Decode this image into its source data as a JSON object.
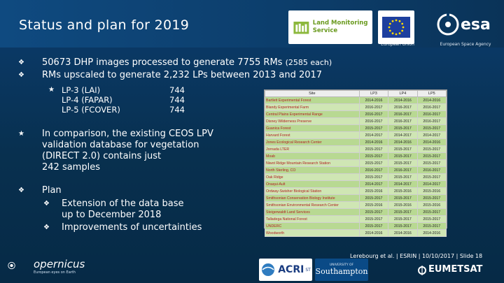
{
  "title": "Status and plan for 2019",
  "logos": {
    "land_monitoring": "Land Monitoring Service",
    "eu_label": "European Union",
    "esa_text": "esa",
    "esa_label": "European Space Agency",
    "copernicus": "opernicus",
    "copernicus_sub": "European eyes on Earth",
    "acri": "ACRI",
    "acri_sub": "ST",
    "southampton_top": "UNIVERSITY OF",
    "southampton": "Southampton",
    "eumetsat": "EUMETSAT"
  },
  "bullets": {
    "b1": "50673 DHP images processed to generate 7755 RMs",
    "b1_small": "(2585 each)",
    "b2": "RMs upscaled to generate 2,232 LPs between 2013 and 2017",
    "lp": [
      {
        "label": "LP-3 (LAI)",
        "value": "744"
      },
      {
        "label": "LP-4 (FAPAR)",
        "value": "744"
      },
      {
        "label": "LP-5 (FCOVER)",
        "value": "744"
      }
    ],
    "comparison": [
      "In comparison, the existing CEOS LPV",
      "validation database for vegetation",
      "(DIRECT 2.0) contains just",
      "242 samples"
    ],
    "plan": "Plan",
    "plan_items": [
      {
        "line1": "Extension of the data base",
        "line2": "up to December 2018"
      },
      {
        "line1": "Improvements of uncertainties",
        "line2": ""
      }
    ]
  },
  "table": {
    "headers": [
      "Site",
      "LP3",
      "LP4",
      "LP5"
    ],
    "rows": [
      [
        "Bartlett Experimental Forest",
        "2014-2016",
        "2014-2016",
        "2014-2016"
      ],
      [
        "Blandy Experimental Farm",
        "2016-2017",
        "2016-2017",
        "2016-2017"
      ],
      [
        "Central Plains Experimental Range",
        "2016-2017",
        "2016-2017",
        "2016-2017"
      ],
      [
        "Disney Wilderness Preserve",
        "2016-2017",
        "2016-2017",
        "2016-2017"
      ],
      [
        "Guanica Forest",
        "2015-2017",
        "2015-2017",
        "2015-2017"
      ],
      [
        "Harvard Forest",
        "2014-2017",
        "2014-2017",
        "2014-2017"
      ],
      [
        "Jones Ecological Research Center",
        "2014-2016",
        "2014-2016",
        "2014-2016"
      ],
      [
        "Jornada LTER",
        "2015-2017",
        "2015-2017",
        "2015-2017"
      ],
      [
        "Moab",
        "2015-2017",
        "2015-2017",
        "2015-2017"
      ],
      [
        "Niwot Ridge Mountain Research Station",
        "2015-2017",
        "2015-2017",
        "2015-2017"
      ],
      [
        "North Sterling, CO",
        "2016-2017",
        "2016-2017",
        "2016-2017"
      ],
      [
        "Oak Ridge",
        "2015-2017",
        "2015-2017",
        "2015-2017"
      ],
      [
        "Onaqui-Ault",
        "2014-2017",
        "2014-2017",
        "2014-2017"
      ],
      [
        "Ordway-Swisher Biological Station",
        "2015-2016",
        "2015-2016",
        "2015-2016"
      ],
      [
        "Smithsonian Conservation Biology Institute",
        "2015-2017",
        "2015-2017",
        "2015-2017"
      ],
      [
        "Smithsonian Environmental Research Center",
        "2015-2016",
        "2015-2016",
        "2015-2016"
      ],
      [
        "Steigerwaldt Land Services",
        "2015-2017",
        "2015-2017",
        "2015-2017"
      ],
      [
        "Talladega National Forest",
        "2015-2017",
        "2015-2017",
        "2015-2017"
      ],
      [
        "UNDERC",
        "2015-2017",
        "2015-2017",
        "2015-2017"
      ],
      [
        "Woodworth",
        "2014-2016",
        "2014-2016",
        "2014-2016"
      ]
    ]
  },
  "footer": "Lerebourg et al. | ESRIN | 10/10/2017 | Slide 18",
  "colors": {
    "background": "#08304f",
    "table_green": "#b8d992",
    "site_red": "#b22222"
  }
}
